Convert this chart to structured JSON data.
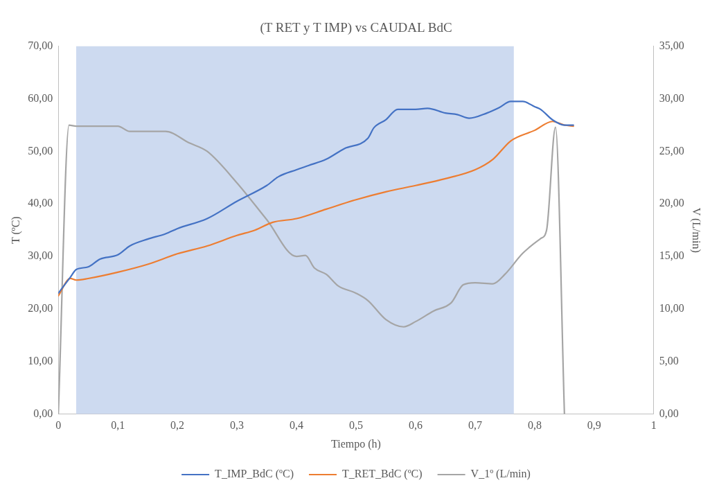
{
  "chart_data": {
    "type": "line",
    "title": "(T RET y T IMP) vs CAUDAL BdC",
    "xlabel": "Tiempo (h)",
    "ylabel": "T (ºC)",
    "y2label": "V (L/min)",
    "xlim": [
      0,
      1
    ],
    "xticks": [
      0,
      {
        "value": 0.1,
        "label": "0,1"
      },
      {
        "value": 0.2,
        "label": "0,2"
      },
      {
        "value": 0.3,
        "label": "0,3"
      },
      {
        "value": 0.4,
        "label": "0,4"
      },
      {
        "value": 0.5,
        "label": "0,5"
      },
      {
        "value": 0.6,
        "label": "0,6"
      },
      {
        "value": 0.7,
        "label": "0,7"
      },
      {
        "value": 0.8,
        "label": "0,8"
      },
      {
        "value": 0.9,
        "label": "0,9"
      },
      1
    ],
    "ylim": [
      0,
      70
    ],
    "yticks": [
      {
        "value": 0,
        "label": "0,00"
      },
      {
        "value": 10,
        "label": "10,00"
      },
      {
        "value": 20,
        "label": "20,00"
      },
      {
        "value": 30,
        "label": "30,00"
      },
      {
        "value": 40,
        "label": "40,00"
      },
      {
        "value": 50,
        "label": "50,00"
      },
      {
        "value": 60,
        "label": "60,00"
      },
      {
        "value": 70,
        "label": "70,00"
      }
    ],
    "y2lim": [
      0,
      35
    ],
    "y2ticks": [
      {
        "value": 0,
        "label": "0,00"
      },
      {
        "value": 5,
        "label": "5,00"
      },
      {
        "value": 10,
        "label": "10,00"
      },
      {
        "value": 15,
        "label": "15,00"
      },
      {
        "value": 20,
        "label": "20,00"
      },
      {
        "value": 25,
        "label": "25,00"
      },
      {
        "value": 30,
        "label": "30,00"
      },
      {
        "value": 35,
        "label": "35,00"
      }
    ],
    "grid": false,
    "legend": "bottom",
    "marker": "none",
    "bands": [
      {
        "axis": "x",
        "from": 0.03,
        "to": 0.765,
        "color": "#cddaf0"
      }
    ],
    "series": [
      {
        "name": "T_IMP_BdC (ºC)",
        "color": "#4472c4",
        "x": [
          0,
          0.02,
          0.03,
          0.05,
          0.07,
          0.1,
          0.12,
          0.15,
          0.18,
          0.2,
          0.25,
          0.3,
          0.35,
          0.37,
          0.4,
          0.42,
          0.45,
          0.48,
          0.52,
          0.53,
          0.55,
          0.57,
          0.6,
          0.62,
          0.65,
          0.67,
          0.69,
          0.72,
          0.74,
          0.76,
          0.78,
          0.8,
          0.81,
          0.83,
          0.85,
          0.865
        ],
        "values": [
          23,
          26,
          27.5,
          28,
          29.5,
          30.3,
          32,
          33.3,
          34.3,
          35.3,
          37.2,
          40.5,
          43.5,
          45.2,
          46.5,
          47.3,
          48.5,
          50.5,
          52.5,
          54.5,
          56,
          58,
          58,
          58.2,
          57.3,
          57,
          56.3,
          57.3,
          58.3,
          59.5,
          59.5,
          58.5,
          58,
          56,
          55,
          55
        ]
      },
      {
        "name": "T_RET_BdC (ºC)",
        "color": "#ed7d31",
        "x": [
          0,
          0.02,
          0.03,
          0.05,
          0.1,
          0.15,
          0.2,
          0.25,
          0.3,
          0.33,
          0.36,
          0.4,
          0.45,
          0.5,
          0.55,
          0.6,
          0.65,
          0.7,
          0.73,
          0.76,
          0.8,
          0.83,
          0.85,
          0.865
        ],
        "values": [
          22.5,
          25.8,
          25.5,
          25.8,
          27,
          28.5,
          30.5,
          32,
          34,
          35,
          36.5,
          37.2,
          39,
          40.8,
          42.3,
          43.5,
          44.8,
          46.5,
          48.5,
          52,
          54,
          55.7,
          55,
          54.8
        ]
      },
      {
        "name": "V_1º (L/min)",
        "color": "#a5a5a5",
        "axis": "y2",
        "x": [
          0,
          0.018,
          0.03,
          0.1,
          0.12,
          0.18,
          0.22,
          0.25,
          0.3,
          0.35,
          0.4,
          0.415,
          0.43,
          0.45,
          0.47,
          0.5,
          0.52,
          0.55,
          0.58,
          0.6,
          0.63,
          0.66,
          0.68,
          0.7,
          0.73,
          0.75,
          0.78,
          0.81,
          0.82,
          0.835,
          0.85
        ],
        "values": [
          0,
          27.5,
          27.4,
          27.4,
          26.9,
          26.9,
          25.8,
          25,
          22,
          18.5,
          15,
          15.1,
          13.9,
          13.3,
          12.2,
          11.5,
          10.8,
          9,
          8.3,
          8.8,
          9.8,
          10.6,
          12.3,
          12.5,
          12.4,
          13.3,
          15.3,
          16.7,
          17.5,
          27.3,
          0
        ]
      }
    ]
  }
}
